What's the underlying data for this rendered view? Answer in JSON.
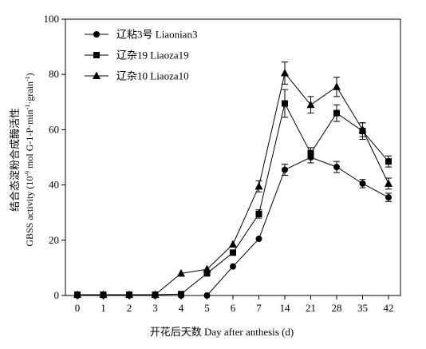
{
  "chart_data": {
    "type": "line",
    "xlabel": "开花后天数 Day after anthesis (d)",
    "ylabel_cn": "结合态淀粉合成酶活性",
    "ylabel_en_pre": "GBSS activity (10",
    "ylabel_sup1": "-9",
    "ylabel_en_mid": " mol G-1-P·min",
    "ylabel_sup2": "-1",
    "ylabel_en_mid2": "·grain",
    "ylabel_sup3": "-1",
    "ylabel_en_post": ")",
    "categories": [
      "0",
      "1",
      "2",
      "3",
      "4",
      "5",
      "6",
      "7",
      "14",
      "21",
      "28",
      "35",
      "42"
    ],
    "ylim": [
      0,
      100
    ],
    "yticks": [
      0,
      20,
      40,
      60,
      80,
      100
    ],
    "legend_position": "top-left",
    "series": [
      {
        "name": "辽粘3号 Liaonian3",
        "marker": "circle",
        "values": [
          0,
          0,
          0,
          0,
          0,
          0,
          10.5,
          20.5,
          45.5,
          50,
          46.5,
          40.5,
          35.5
        ],
        "errors": [
          0,
          0,
          0,
          0,
          0,
          0,
          0,
          0,
          2,
          2,
          2,
          1.5,
          1.5
        ]
      },
      {
        "name": "辽杂19 Liaoza19",
        "marker": "square",
        "values": [
          0.3,
          0.3,
          0.3,
          0.3,
          0.5,
          8,
          15.5,
          29.5,
          69.5,
          51.5,
          66,
          59.5,
          48.5
        ],
        "errors": [
          0,
          0,
          0,
          0,
          0,
          0,
          0,
          1.5,
          5,
          2,
          3,
          3,
          2
        ]
      },
      {
        "name": "辽杂10 Liaoza10",
        "marker": "triangle",
        "values": [
          0.3,
          0.3,
          0.3,
          0.3,
          8,
          9.5,
          18.5,
          39.5,
          80.5,
          69,
          75.5,
          60,
          40.5
        ],
        "errors": [
          0,
          0,
          0,
          0,
          0,
          0,
          0,
          2,
          4,
          3,
          3.5,
          2.5,
          2
        ]
      }
    ]
  }
}
